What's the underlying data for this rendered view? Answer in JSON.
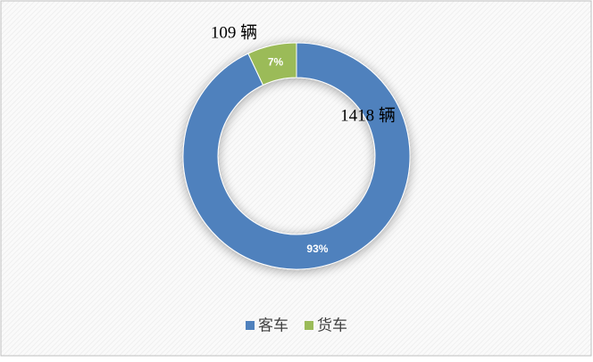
{
  "chart_data": {
    "type": "pie",
    "donut": true,
    "categories": [
      "客车",
      "货车"
    ],
    "values": [
      93,
      7
    ],
    "value_labels": [
      "93%",
      "7%"
    ],
    "colors": [
      "#4f81bd",
      "#9bbb59"
    ],
    "annotations": [
      "1418 辆",
      "109 辆"
    ],
    "legend": "bottom"
  }
}
